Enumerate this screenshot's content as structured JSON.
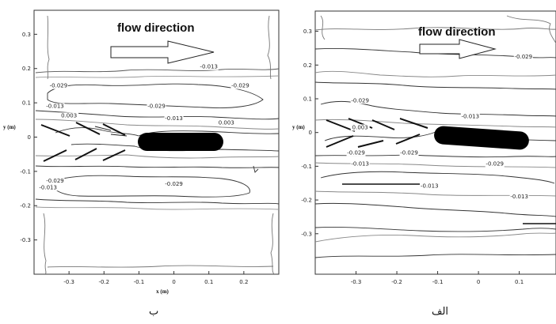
{
  "chart_data": [
    {
      "type": "contour",
      "panel_label": "ب",
      "xlabel": "x (m)",
      "ylabel": "y (m)",
      "xlim": [
        -0.4,
        0.3
      ],
      "ylim": [
        -0.4,
        0.37
      ],
      "x_ticks": [
        "-0.3",
        "-0.2",
        "-0.1",
        "0",
        "0.1",
        "0.2"
      ],
      "x_tick_values": [
        -0.3,
        -0.2,
        -0.1,
        0,
        0.1,
        0.2
      ],
      "y_ticks": [
        "0.3",
        "0.2",
        "0.1",
        "0",
        "-0.1",
        "-0.2",
        "-0.3"
      ],
      "y_tick_values": [
        0.3,
        0.2,
        0.1,
        0,
        -0.1,
        -0.2,
        -0.3
      ],
      "annotation": "flow direction",
      "contour_levels": [
        {
          "label": "-0.013",
          "x": 0.1,
          "y": 0.2
        },
        {
          "label": "-0.029",
          "x": -0.33,
          "y": 0.145
        },
        {
          "label": "-0.029",
          "x": 0.19,
          "y": 0.145
        },
        {
          "label": "-0.029",
          "x": -0.05,
          "y": 0.085
        },
        {
          "label": "-0.013",
          "x": -0.34,
          "y": 0.085
        },
        {
          "label": "0.003",
          "x": -0.3,
          "y": 0.058
        },
        {
          "label": "-0.013",
          "x": 0.0,
          "y": 0.05
        },
        {
          "label": "0.003",
          "x": 0.15,
          "y": 0.037
        },
        {
          "label": "-0.029",
          "x": -0.34,
          "y": -0.133
        },
        {
          "label": "-0.029",
          "x": 0.0,
          "y": -0.142
        },
        {
          "label": "-0.013",
          "x": -0.36,
          "y": -0.152
        }
      ],
      "body": {
        "x_from": -0.095,
        "x_to": 0.105,
        "y_half_width": 0.03
      }
    },
    {
      "type": "contour",
      "panel_label": "الف",
      "xlabel": "",
      "ylabel": "y (m)",
      "xlim": [
        -0.4,
        0.19
      ],
      "ylim": [
        -0.42,
        0.36
      ],
      "x_ticks": [
        "-0.3",
        "-0.2",
        "-0.1",
        "0",
        "0.1"
      ],
      "x_tick_values": [
        -0.3,
        -0.2,
        -0.1,
        0,
        0.1
      ],
      "y_ticks": [
        "0.3",
        "0.2",
        "0.1",
        "0",
        "-0.1",
        "-0.2",
        "-0.3"
      ],
      "y_tick_values": [
        0.3,
        0.2,
        0.1,
        0,
        -0.1,
        -0.2,
        -0.3
      ],
      "annotation": "flow direction",
      "contour_levels": [
        {
          "label": "-0.029",
          "x": 0.11,
          "y": 0.22
        },
        {
          "label": "-0.029",
          "x": -0.29,
          "y": 0.09
        },
        {
          "label": "-0.013",
          "x": -0.02,
          "y": 0.043
        },
        {
          "label": "0.003",
          "x": -0.29,
          "y": 0.01
        },
        {
          "label": "-0.029",
          "x": -0.3,
          "y": -0.065
        },
        {
          "label": "-0.029",
          "x": -0.17,
          "y": -0.065
        },
        {
          "label": "-0.013",
          "x": -0.29,
          "y": -0.098
        },
        {
          "label": "-0.029",
          "x": 0.04,
          "y": -0.098
        },
        {
          "label": "-0.013",
          "x": -0.12,
          "y": -0.163
        },
        {
          "label": "-0.013",
          "x": 0.1,
          "y": -0.195
        }
      ],
      "body": {
        "x_from": -0.095,
        "x_to": 0.105,
        "y_half_width": 0.03
      }
    }
  ]
}
